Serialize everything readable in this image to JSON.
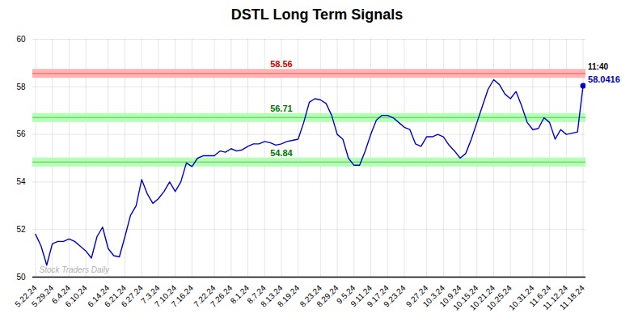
{
  "chart_data": {
    "type": "line",
    "title": "DSTL Long Term Signals",
    "categories": [
      "5.22.24",
      null,
      null,
      "5.29.24",
      null,
      null,
      "6.4.24",
      null,
      null,
      "6.10.24",
      null,
      null,
      null,
      "6.14.24",
      null,
      null,
      "6.21.24",
      null,
      null,
      "6.27.24",
      null,
      null,
      "7.3.24",
      null,
      null,
      "7.10.24",
      null,
      null,
      "7.16.24",
      null,
      null,
      null,
      "7.22.24",
      null,
      null,
      "7.26.24",
      null,
      null,
      "8.1.24",
      null,
      null,
      "8.7.24",
      null,
      null,
      "8.13.24",
      null,
      null,
      "8.19.24",
      null,
      null,
      null,
      "8.23.24",
      null,
      null,
      "8.29.24",
      null,
      null,
      "9.5.24",
      null,
      null,
      "9.11.24",
      null,
      null,
      "9.17.24",
      null,
      null,
      "9.23.24",
      null,
      null,
      null,
      "9.27.24",
      null,
      null,
      "10.3.24",
      null,
      null,
      "10.9.24",
      null,
      null,
      "10.15.24",
      null,
      null,
      "10.21.24",
      null,
      null,
      "10.25.24",
      null,
      null,
      null,
      "10.31.24",
      null,
      null,
      "11.6.24",
      null,
      null,
      "11.12.24",
      null,
      null,
      "11.18.24"
    ],
    "values": [
      51.8,
      51.3,
      50.5,
      51.4,
      51.5,
      51.5,
      51.6,
      51.5,
      51.3,
      51.1,
      50.8,
      51.7,
      52.1,
      51.2,
      50.9,
      50.85,
      51.7,
      52.6,
      53.0,
      54.1,
      53.5,
      53.1,
      53.3,
      53.6,
      54.0,
      53.6,
      54.0,
      54.8,
      54.65,
      55.0,
      55.1,
      55.1,
      55.1,
      55.3,
      55.25,
      55.4,
      55.3,
      55.35,
      55.5,
      55.6,
      55.6,
      55.7,
      55.65,
      55.55,
      55.6,
      55.7,
      55.75,
      55.8,
      56.5,
      57.35,
      57.5,
      57.45,
      57.3,
      56.8,
      56.0,
      55.8,
      55.0,
      54.7,
      54.7,
      55.3,
      56.0,
      56.6,
      56.8,
      56.8,
      56.7,
      56.5,
      56.3,
      56.2,
      55.6,
      55.5,
      55.9,
      55.9,
      56.0,
      55.9,
      55.55,
      55.3,
      55.0,
      55.2,
      55.8,
      56.5,
      57.2,
      57.9,
      58.3,
      58.1,
      57.7,
      57.5,
      57.8,
      57.2,
      56.5,
      56.2,
      56.25,
      56.7,
      56.5,
      55.8,
      56.2,
      56.0,
      56.05,
      56.1,
      58.0416
    ],
    "color": "#0000cc",
    "ylim": [
      50,
      60
    ],
    "yticks": [
      50,
      52,
      54,
      56,
      58,
      60
    ],
    "grid": true,
    "reference_lines": [
      {
        "value": 58.56,
        "label": "58.56",
        "color": "#cc0000",
        "band_color": "#ffb3b3"
      },
      {
        "value": 56.71,
        "label": "56.71",
        "color": "#007700",
        "band_color": "#b3ffb3"
      },
      {
        "value": 54.84,
        "label": "54.84",
        "color": "#007700",
        "band_color": "#b3ffb3"
      }
    ],
    "last_point": {
      "time_label": "11:40",
      "value_label": "58.0416",
      "color": "#0000cc"
    },
    "watermark": {
      "text": "Stock Traders Daily",
      "color": "#b0b0b0"
    }
  }
}
